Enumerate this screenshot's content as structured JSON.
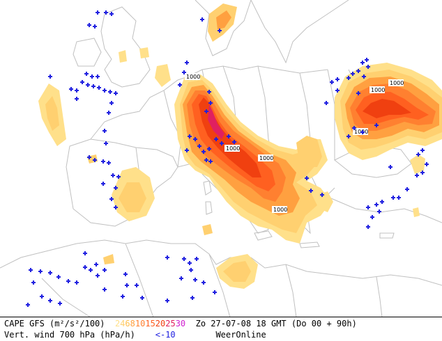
{
  "legend": {
    "cape_label": "CAPE GFS (m²/s²/100)",
    "cape_scale": [
      {
        "text": "2",
        "color": "#ffe08a"
      },
      {
        "text": "4",
        "color": "#ffd070"
      },
      {
        "text": "6",
        "color": "#ffc050"
      },
      {
        "text": "8",
        "color": "#ffa040"
      },
      {
        "text": "10",
        "color": "#ff8030"
      },
      {
        "text": "15",
        "color": "#ff6020"
      },
      {
        "text": "20",
        "color": "#f04010"
      },
      {
        "text": "25",
        "color": "#e02060"
      },
      {
        "text": "30",
        "color": "#d020d0"
      }
    ],
    "valid_time": "Zo 27-07-08 18 GMT (Do 00 + 90h)",
    "wind_label": "Vert. wind 700 hPa (hPa/h)",
    "wind_threshold": "<-10",
    "wind_color": "#2020e0",
    "source": "WeerOnline"
  },
  "map": {
    "contour_label": "1000",
    "colors": {
      "cape_2": "#ffe08a",
      "cape_4": "#ffd070",
      "cape_6": "#ffc050",
      "cape_8": "#ffa040",
      "cape_10": "#ff8030",
      "cape_15": "#ff6020",
      "cape_20": "#f04010",
      "cape_25": "#e02060",
      "coastline": "#c0c0c0",
      "wind_marker": "#2020e0"
    }
  }
}
